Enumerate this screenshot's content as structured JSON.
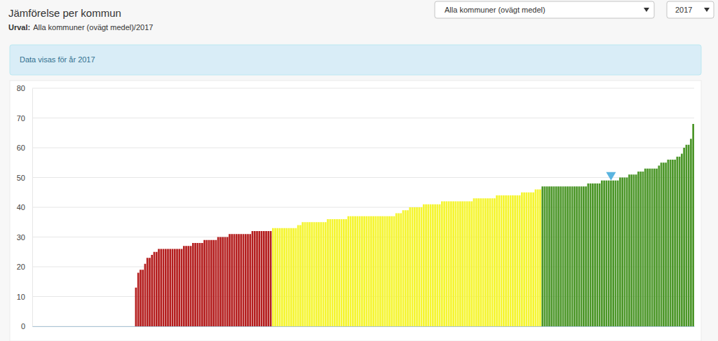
{
  "chart_data": {
    "type": "bar",
    "title": "Jämförelse per kommun",
    "subtitle": {
      "label": "Urval:",
      "text": "Alla kommuner (ovägt medel)/2017"
    },
    "annotations": [
      "Alla kommuner (ovägt medel)",
      "2017",
      "Data visas för år 2017"
    ],
    "categories": [
      null,
      null,
      null,
      null,
      null,
      null,
      null,
      null,
      null,
      null,
      null,
      null,
      null,
      null,
      null,
      null,
      null,
      null,
      null,
      null,
      null,
      null,
      null,
      null,
      null,
      null,
      null,
      null,
      null,
      null,
      null,
      null,
      null,
      null,
      null,
      null,
      null,
      null,
      null,
      null,
      null,
      null,
      null,
      null,
      null,
      null,
      null,
      null,
      null,
      null,
      null,
      null,
      null,
      null,
      null,
      null,
      null,
      null,
      null,
      null,
      null,
      null,
      null,
      null,
      null,
      null,
      null,
      null,
      null,
      null,
      null,
      null,
      null,
      null,
      null,
      null,
      null,
      null,
      null,
      null,
      null,
      null,
      null,
      null,
      null,
      null,
      null,
      null,
      null,
      null,
      null,
      null,
      null,
      null,
      null,
      null,
      null,
      null,
      null,
      null,
      null,
      null,
      null,
      null,
      null,
      null,
      null,
      null,
      null,
      null,
      null,
      null,
      null,
      null,
      null,
      null,
      null,
      null,
      null,
      null,
      null,
      null,
      null,
      null,
      null,
      null,
      null,
      null,
      null,
      null,
      null,
      null,
      null,
      null,
      null,
      null,
      null,
      null,
      null,
      null,
      null,
      null,
      null,
      null,
      null,
      null,
      null,
      null,
      null,
      null,
      null,
      null,
      null,
      null,
      null,
      null,
      null,
      null,
      null,
      null,
      null,
      null,
      null,
      null,
      null,
      null,
      null,
      null,
      null,
      null,
      null,
      null,
      null,
      null,
      null,
      null,
      null,
      null,
      null,
      null,
      null,
      null,
      null,
      null,
      null,
      null,
      null,
      null,
      null,
      null,
      null,
      null,
      null,
      null,
      null,
      null,
      null,
      null,
      null,
      null,
      null,
      null,
      null,
      null,
      null,
      null,
      null,
      null,
      null,
      null,
      null,
      null,
      null,
      null,
      null,
      null,
      null,
      null,
      null,
      null,
      null,
      null,
      null,
      null,
      null,
      null,
      null,
      null,
      null,
      null,
      null,
      null,
      null,
      null,
      null,
      null,
      null,
      null,
      null,
      null,
      null,
      null,
      null,
      null,
      null,
      null,
      null,
      null,
      null,
      null,
      null,
      null,
      null,
      null,
      null,
      null,
      null,
      null,
      null,
      null,
      null,
      null,
      null,
      null,
      null,
      null,
      null,
      null,
      null,
      null,
      null,
      null,
      null,
      null,
      null,
      null,
      null,
      null,
      null,
      null,
      null,
      null,
      null,
      null,
      null,
      null,
      null,
      null,
      null,
      null
    ],
    "values": [
      null,
      null,
      null,
      null,
      null,
      null,
      null,
      null,
      null,
      null,
      null,
      null,
      null,
      null,
      null,
      null,
      null,
      null,
      null,
      null,
      null,
      null,
      null,
      null,
      null,
      null,
      null,
      null,
      null,
      null,
      null,
      null,
      null,
      null,
      null,
      null,
      null,
      null,
      null,
      null,
      null,
      null,
      null,
      null,
      null,
      13,
      18,
      19,
      19,
      21,
      23,
      23,
      24,
      25,
      25,
      26,
      26,
      26,
      26,
      26,
      26,
      26,
      26,
      26,
      26,
      26,
      27,
      27,
      27,
      27,
      28,
      28,
      28,
      28,
      28,
      29,
      29,
      29,
      29,
      29,
      29,
      30,
      30,
      30,
      30,
      30,
      31,
      31,
      31,
      31,
      31,
      31,
      31,
      31,
      31,
      31,
      32,
      32,
      32,
      32,
      32,
      32,
      32,
      32,
      32,
      33,
      33,
      33,
      33,
      33,
      33,
      33,
      33,
      33,
      33,
      33,
      34,
      34,
      35,
      35,
      35,
      35,
      35,
      35,
      35,
      35,
      35,
      35,
      35,
      36,
      36,
      36,
      36,
      36,
      36,
      36,
      36,
      36,
      37,
      37,
      37,
      37,
      37,
      37,
      37,
      37,
      37,
      37,
      37,
      37,
      37,
      37,
      37,
      37,
      37,
      37,
      37,
      37,
      37,
      38,
      38,
      38,
      39,
      39,
      39,
      40,
      40,
      40,
      40,
      40,
      40,
      41,
      41,
      41,
      41,
      41,
      41,
      41,
      41,
      42,
      42,
      42,
      42,
      42,
      42,
      42,
      42,
      42,
      42,
      42,
      42,
      42,
      42,
      43,
      43,
      43,
      43,
      43,
      43,
      43,
      43,
      43,
      43,
      44,
      44,
      44,
      44,
      44,
      44,
      44,
      44,
      44,
      44,
      44,
      45,
      45,
      45,
      45,
      45,
      45,
      46,
      46,
      46,
      47,
      47,
      47,
      47,
      47,
      47,
      47,
      47,
      47,
      47,
      47,
      47,
      47,
      47,
      47,
      47,
      47,
      47,
      47,
      47,
      48,
      48,
      48,
      48,
      48,
      48,
      49,
      49,
      49,
      49,
      49,
      49,
      49,
      49,
      50,
      50,
      50,
      50,
      51,
      51,
      51,
      51,
      52,
      52,
      52,
      53,
      53,
      53,
      53,
      53,
      53,
      54,
      55,
      55,
      55,
      56,
      56,
      56,
      56,
      57,
      57,
      58,
      60,
      61,
      61,
      63,
      68
    ],
    "colors": [
      null,
      null,
      null,
      null,
      null,
      null,
      null,
      null,
      null,
      null,
      null,
      null,
      null,
      null,
      null,
      null,
      null,
      null,
      null,
      null,
      null,
      null,
      null,
      null,
      null,
      null,
      null,
      null,
      null,
      null,
      null,
      null,
      null,
      null,
      null,
      null,
      null,
      null,
      null,
      null,
      null,
      null,
      null,
      null,
      null,
      "#b41e1e",
      "#b41e1e",
      "#b41e1e",
      "#b41e1e",
      "#b41e1e",
      "#b41e1e",
      "#b41e1e",
      "#b41e1e",
      "#b41e1e",
      "#b41e1e",
      "#b41e1e",
      "#b41e1e",
      "#b41e1e",
      "#b41e1e",
      "#b41e1e",
      "#b41e1e",
      "#b41e1e",
      "#b41e1e",
      "#b41e1e",
      "#b41e1e",
      "#b41e1e",
      "#b41e1e",
      "#b41e1e",
      "#b41e1e",
      "#b41e1e",
      "#b41e1e",
      "#b41e1e",
      "#b41e1e",
      "#b41e1e",
      "#b41e1e",
      "#b41e1e",
      "#b41e1e",
      "#b41e1e",
      "#b41e1e",
      "#b41e1e",
      "#b41e1e",
      "#b41e1e",
      "#b41e1e",
      "#b41e1e",
      "#b41e1e",
      "#b41e1e",
      "#b41e1e",
      "#b41e1e",
      "#b41e1e",
      "#b41e1e",
      "#b41e1e",
      "#b41e1e",
      "#b41e1e",
      "#b41e1e",
      "#b41e1e",
      "#b41e1e",
      "#b41e1e",
      "#b41e1e",
      "#b41e1e",
      "#b41e1e",
      "#b41e1e",
      "#b41e1e",
      "#b41e1e",
      "#b41e1e",
      "#b41e1e",
      "#f5f531",
      "#f5f531",
      "#f5f531",
      "#f5f531",
      "#f5f531",
      "#f5f531",
      "#f5f531",
      "#f5f531",
      "#f5f531",
      "#f5f531",
      "#f5f531",
      "#f5f531",
      "#f5f531",
      "#f5f531",
      "#f5f531",
      "#f5f531",
      "#f5f531",
      "#f5f531",
      "#f5f531",
      "#f5f531",
      "#f5f531",
      "#f5f531",
      "#f5f531",
      "#f5f531",
      "#f5f531",
      "#f5f531",
      "#f5f531",
      "#f5f531",
      "#f5f531",
      "#f5f531",
      "#f5f531",
      "#f5f531",
      "#f5f531",
      "#f5f531",
      "#f5f531",
      "#f5f531",
      "#f5f531",
      "#f5f531",
      "#f5f531",
      "#f5f531",
      "#f5f531",
      "#f5f531",
      "#f5f531",
      "#f5f531",
      "#f5f531",
      "#f5f531",
      "#f5f531",
      "#f5f531",
      "#f5f531",
      "#f5f531",
      "#f5f531",
      "#f5f531",
      "#f5f531",
      "#f5f531",
      "#f5f531",
      "#f5f531",
      "#f5f531",
      "#f5f531",
      "#f5f531",
      "#f5f531",
      "#f5f531",
      "#f5f531",
      "#f5f531",
      "#f5f531",
      "#f5f531",
      "#f5f531",
      "#f5f531",
      "#f5f531",
      "#f5f531",
      "#f5f531",
      "#f5f531",
      "#f5f531",
      "#f5f531",
      "#f5f531",
      "#f5f531",
      "#f5f531",
      "#f5f531",
      "#f5f531",
      "#f5f531",
      "#f5f531",
      "#f5f531",
      "#f5f531",
      "#f5f531",
      "#f5f531",
      "#f5f531",
      "#f5f531",
      "#f5f531",
      "#f5f531",
      "#f5f531",
      "#f5f531",
      "#f5f531",
      "#f5f531",
      "#f5f531",
      "#f5f531",
      "#f5f531",
      "#f5f531",
      "#f5f531",
      "#f5f531",
      "#f5f531",
      "#f5f531",
      "#f5f531",
      "#f5f531",
      "#f5f531",
      "#f5f531",
      "#f5f531",
      "#f5f531",
      "#f5f531",
      "#f5f531",
      "#f5f531",
      "#f5f531",
      "#f5f531",
      "#f5f531",
      "#f5f531",
      "#f5f531",
      "#f5f531",
      "#f5f531",
      "#f5f531",
      "#f5f531",
      "#4b9628",
      "#4b9628",
      "#4b9628",
      "#4b9628",
      "#4b9628",
      "#4b9628",
      "#4b9628",
      "#4b9628",
      "#4b9628",
      "#4b9628",
      "#4b9628",
      "#4b9628",
      "#4b9628",
      "#4b9628",
      "#4b9628",
      "#4b9628",
      "#4b9628",
      "#4b9628",
      "#4b9628",
      "#4b9628",
      "#4b9628",
      "#4b9628",
      "#4b9628",
      "#4b9628",
      "#4b9628",
      "#4b9628",
      "#4b9628",
      "#4b9628",
      "#4b9628",
      "#4b9628",
      "#4b9628",
      "#4b9628",
      "#4b9628",
      "#4b9628",
      "#4b9628",
      "#4b9628",
      "#4b9628",
      "#4b9628",
      "#4b9628",
      "#4b9628",
      "#4b9628",
      "#4b9628",
      "#4b9628",
      "#4b9628",
      "#4b9628",
      "#4b9628",
      "#4b9628",
      "#4b9628",
      "#4b9628",
      "#4b9628",
      "#4b9628",
      "#4b9628",
      "#4b9628",
      "#4b9628",
      "#4b9628",
      "#4b9628",
      "#4b9628",
      "#4b9628",
      "#4b9628",
      "#4b9628",
      "#4b9628",
      "#4b9628",
      "#4b9628",
      "#4b9628",
      "#4b9628",
      "#4b9628",
      "#4b9628"
    ],
    "mean": {
      "index": 253,
      "value": 49
    },
    "ylim": [
      0,
      80
    ],
    "yticks": [
      0,
      10,
      20,
      30,
      40,
      50,
      60,
      70,
      80
    ],
    "grid": true,
    "tick_labels": "y"
  }
}
